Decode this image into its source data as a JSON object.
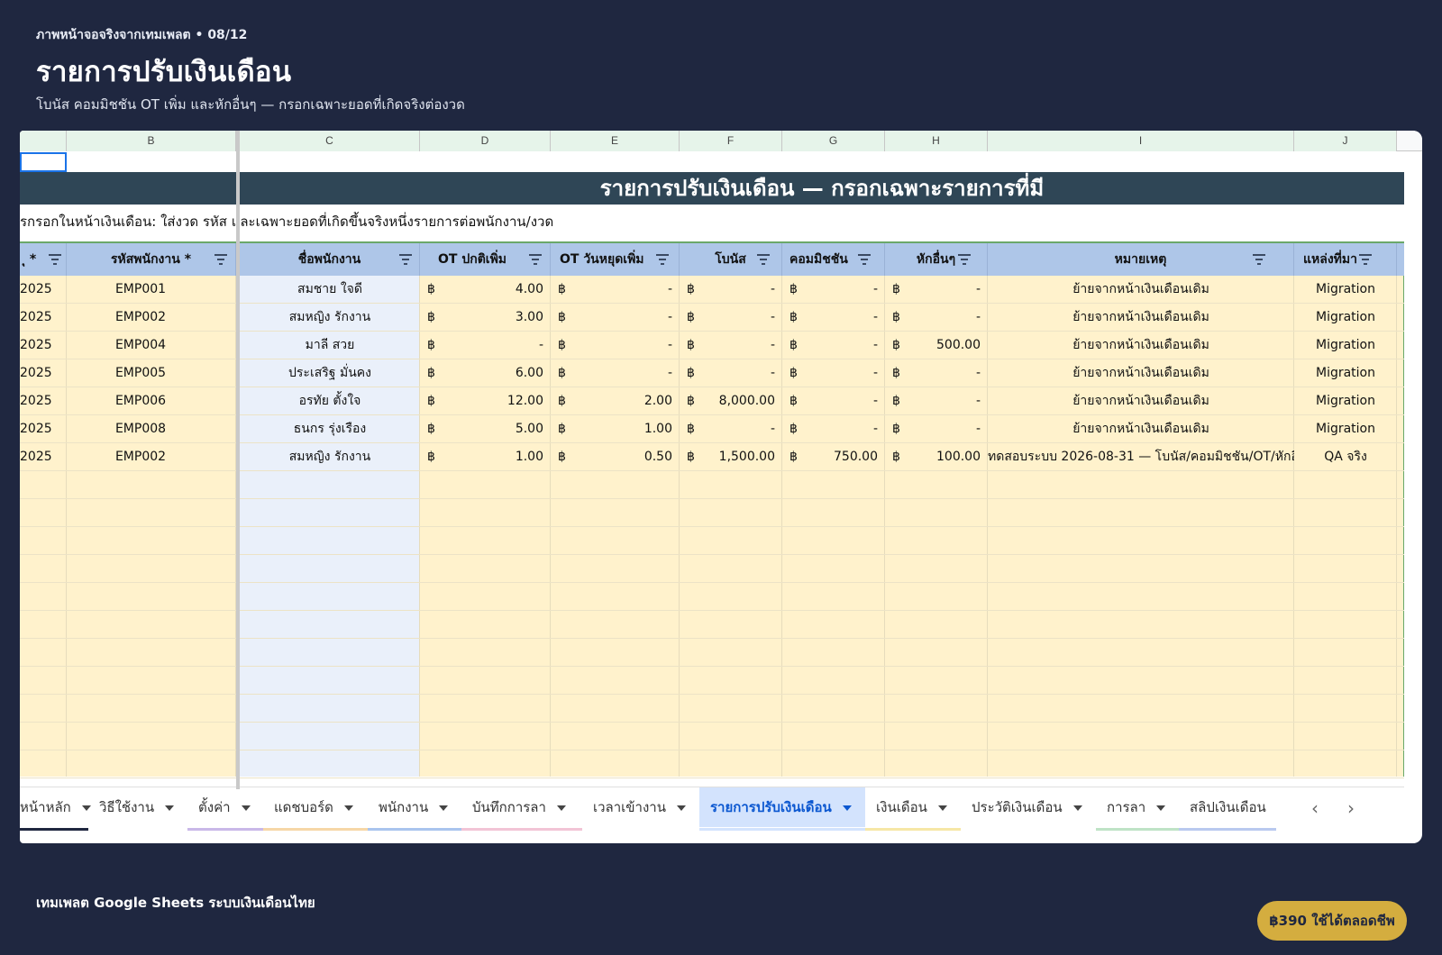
{
  "header": {
    "eyebrow": "ภาพหน้าจอจริงจากเทมเพลต • 08/12",
    "title": "รายการปรับเงินเดือน",
    "subtitle": "โบนัส คอมมิชชัน OT เพิ่ม และหักอื่นๆ — กรอกเฉพาะยอดที่เกิดจริงต่องวด"
  },
  "sheet": {
    "column_letters": [
      "B",
      "C",
      "D",
      "E",
      "F",
      "G",
      "H",
      "I",
      "J"
    ],
    "banner": "รายการปรับเงินเดือน — กรอกเฉพาะรายการที่มี",
    "note": "รกรอกในหน้าเงินเดือน: ใส่งวด รหัส และเฉพาะยอดที่เกิดขึ้นจริงหนึ่งรายการต่อพนักงาน/งวด",
    "currency_symbol": "฿",
    "headers": {
      "a": "ุ *",
      "b": "รหัสพนักงาน *",
      "c": "ชื่อพนักงาน",
      "d": "OT ปกติเพิ่ม",
      "e": "OT วันหยุดเพิ่ม",
      "f": "โบนัส",
      "g": "คอมมิชชัน",
      "h": "หักอื่นๆ",
      "i": "หมายเหตุ",
      "j": "แหล่งที่มา"
    },
    "rows": [
      {
        "period": "2025",
        "emp_id": "EMP001",
        "name": "สมชาย ใจดี",
        "ot": "4.00",
        "ot_holiday": "-",
        "bonus": "-",
        "commission": "-",
        "deduct": "-",
        "note": "ย้ายจากหน้าเงินเดือนเดิม",
        "source": "Migration"
      },
      {
        "period": "2025",
        "emp_id": "EMP002",
        "name": "สมหญิง รักงาน",
        "ot": "3.00",
        "ot_holiday": "-",
        "bonus": "-",
        "commission": "-",
        "deduct": "-",
        "note": "ย้ายจากหน้าเงินเดือนเดิม",
        "source": "Migration"
      },
      {
        "period": "2025",
        "emp_id": "EMP004",
        "name": "มาลี สวย",
        "ot": "-",
        "ot_holiday": "-",
        "bonus": "-",
        "commission": "-",
        "deduct": "500.00",
        "note": "ย้ายจากหน้าเงินเดือนเดิม",
        "source": "Migration"
      },
      {
        "period": "2025",
        "emp_id": "EMP005",
        "name": "ประเสริฐ มั่นคง",
        "ot": "6.00",
        "ot_holiday": "-",
        "bonus": "-",
        "commission": "-",
        "deduct": "-",
        "note": "ย้ายจากหน้าเงินเดือนเดิม",
        "source": "Migration"
      },
      {
        "period": "2025",
        "emp_id": "EMP006",
        "name": "อรทัย ตั้งใจ",
        "ot": "12.00",
        "ot_holiday": "2.00",
        "bonus": "8,000.00",
        "commission": "-",
        "deduct": "-",
        "note": "ย้ายจากหน้าเงินเดือนเดิม",
        "source": "Migration"
      },
      {
        "period": "2025",
        "emp_id": "EMP008",
        "name": "ธนกร รุ่งเรือง",
        "ot": "5.00",
        "ot_holiday": "1.00",
        "bonus": "-",
        "commission": "-",
        "deduct": "-",
        "note": "ย้ายจากหน้าเงินเดือนเดิม",
        "source": "Migration"
      },
      {
        "period": "2025",
        "emp_id": "EMP002",
        "name": "สมหญิง รักงาน",
        "ot": "1.00",
        "ot_holiday": "0.50",
        "bonus": "1,500.00",
        "commission": "750.00",
        "deduct": "100.00",
        "note": "ทดสอบระบบ 2026-08-31 — โบนัส/คอมมิชชัน/OT/หักอื่",
        "source": "QA จริง"
      }
    ],
    "tabs": [
      {
        "label": "หน้าหลัก",
        "color": "#1f2740"
      },
      {
        "label": "วิธีใช้งาน",
        "color": "#ffffff"
      },
      {
        "label": "ตั้งค่า",
        "color": "#c9b8e8"
      },
      {
        "label": "แดชบอร์ด",
        "color": "#f6d7a7"
      },
      {
        "label": "พนักงาน",
        "color": "#a9c4ee"
      },
      {
        "label": "บันทึกการลา",
        "color": "#f2c4d6"
      },
      {
        "label": "เวลาเข้างาน",
        "color": "#ffffff"
      },
      {
        "label": "รายการปรับเงินเดือน",
        "color": "#d3e3fd"
      },
      {
        "label": "เงินเดือน",
        "color": "#f6e7a6"
      },
      {
        "label": "ประวัติเงินเดือน",
        "color": "#ffffff"
      },
      {
        "label": "การลา",
        "color": "#bfe3c6"
      },
      {
        "label": "สลิปเงินเดือน",
        "color": "#b9c9ef"
      }
    ],
    "active_tab": "รายการปรับเงินเดือน"
  },
  "footer": {
    "brand": "เทมเพลต Google Sheets ระบบเงินเดือนไทย",
    "cta": "฿390 ใช้ได้ตลอดชีพ"
  },
  "colors": {
    "page_bg": "#1f2740",
    "banner": "#2f4656",
    "header_row": "#aec6e8",
    "data_fill": "#fff2cc",
    "name_col_fill": "#eaf0fa",
    "cta": "#d4ad3f"
  }
}
